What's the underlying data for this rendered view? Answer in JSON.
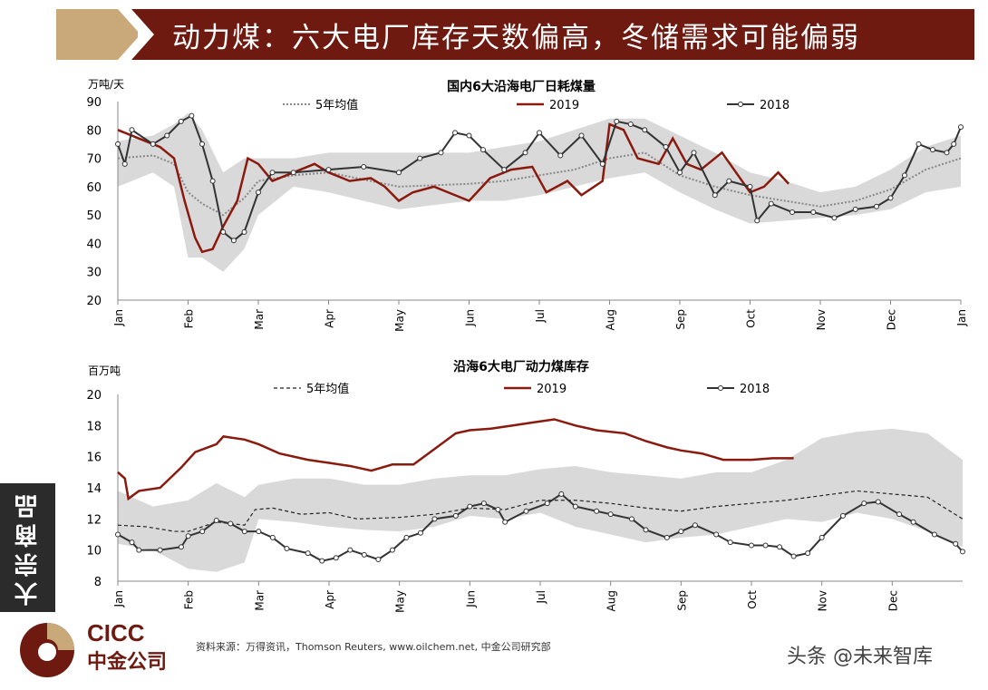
{
  "header": {
    "title": "动力煤：六大电厂库存天数偏高，冬储需求可能偏弱"
  },
  "sidebar": {
    "label": "大宗商品"
  },
  "footer": {
    "source": "资料来源：万得资讯，Thomson Reuters, www.oilchem.net, 中金公司研究部",
    "logo_en": "CICC",
    "logo_cn": "中金公司",
    "watermark": "头条 @未来智库"
  },
  "colors": {
    "banner": "#6e1a10",
    "accent_tan": "#c9a97a",
    "series_2019": "#8b1a0e",
    "series_2018": "#333333",
    "band": "#d9d9d9"
  },
  "chart_data": [
    {
      "type": "line",
      "title": "国内6大沿海电厂日耗煤量",
      "ylabel": "万吨/天",
      "ylim": [
        20,
        90
      ],
      "yticks": [
        20,
        30,
        40,
        50,
        60,
        70,
        80,
        90
      ],
      "categories": [
        "Jan",
        "Feb",
        "Mar",
        "Apr",
        "May",
        "Jun",
        "Jul",
        "Aug",
        "Sep",
        "Oct",
        "Nov",
        "Dec",
        "Jan"
      ],
      "legend": [
        "5年均值",
        "2019",
        "2018"
      ],
      "legend_position": "top",
      "band": {
        "x": [
          0,
          0.5,
          0.8,
          1,
          1.2,
          1.5,
          1.8,
          2,
          2.5,
          3,
          4,
          5,
          5.5,
          6,
          6.5,
          7,
          7.5,
          8,
          8.5,
          9,
          9.5,
          10,
          10.5,
          11,
          11.5,
          12
        ],
        "low": [
          60,
          65,
          60,
          35,
          35,
          30,
          38,
          50,
          60,
          58,
          52,
          55,
          55,
          57,
          60,
          63,
          65,
          58,
          52,
          47,
          48,
          49,
          50,
          52,
          58,
          60
        ],
        "high": [
          76,
          78,
          82,
          86,
          80,
          65,
          70,
          70,
          70,
          72,
          72,
          72,
          74,
          76,
          80,
          84,
          84,
          78,
          72,
          65,
          62,
          58,
          60,
          66,
          74,
          78
        ]
      },
      "series": [
        {
          "name": "5年均值",
          "style": "dotted",
          "x": [
            0,
            0.5,
            0.8,
            1,
            1.2,
            1.5,
            1.8,
            2,
            2.5,
            3,
            4,
            5,
            5.5,
            6,
            6.5,
            7,
            7.5,
            8,
            8.5,
            9,
            9.5,
            10,
            10.5,
            11,
            11.5,
            12
          ],
          "values": [
            70,
            71,
            68,
            58,
            54,
            50,
            56,
            62,
            64,
            65,
            60,
            61,
            62,
            64,
            66,
            70,
            72,
            64,
            60,
            57,
            55,
            53,
            55,
            59,
            66,
            70
          ]
        },
        {
          "name": "2019",
          "style": "solid",
          "x": [
            0,
            0.3,
            0.6,
            0.8,
            0.95,
            1.1,
            1.2,
            1.35,
            1.5,
            1.7,
            1.85,
            2,
            2.2,
            2.5,
            2.8,
            3,
            3.3,
            3.6,
            3.8,
            4,
            4.2,
            4.5,
            4.8,
            5,
            5.3,
            5.6,
            5.9,
            6.1,
            6.4,
            6.6,
            6.9,
            7,
            7.2,
            7.4,
            7.7,
            7.9,
            8.1,
            8.3,
            8.6,
            8.8,
            9,
            9.2,
            9.4,
            9.55
          ],
          "values": [
            80,
            77,
            74,
            70,
            55,
            42,
            37,
            38,
            46,
            55,
            70,
            68,
            62,
            65,
            68,
            65,
            62,
            63,
            60,
            55,
            58,
            60,
            57,
            55,
            63,
            66,
            67,
            58,
            62,
            57,
            62,
            82,
            80,
            70,
            68,
            77,
            68,
            66,
            72,
            65,
            58,
            60,
            65,
            61
          ]
        },
        {
          "name": "2018",
          "style": "marker",
          "x": [
            0,
            0.1,
            0.2,
            0.5,
            0.7,
            0.9,
            1.05,
            1.2,
            1.35,
            1.5,
            1.65,
            1.8,
            2,
            2.2,
            2.5,
            3,
            3.5,
            4,
            4.3,
            4.6,
            4.8,
            5,
            5.2,
            5.5,
            5.8,
            6,
            6.3,
            6.6,
            6.9,
            7.1,
            7.3,
            7.5,
            7.8,
            8,
            8.2,
            8.5,
            8.7,
            9,
            9.1,
            9.3,
            9.6,
            9.9,
            10.2,
            10.5,
            10.8,
            11,
            11.2,
            11.4,
            11.6,
            11.8,
            11.9,
            12
          ],
          "values": [
            75,
            68,
            80,
            75,
            78,
            83,
            85,
            75,
            62,
            44,
            41,
            44,
            58,
            65,
            65,
            66,
            67,
            65,
            70,
            72,
            79,
            78,
            73,
            66,
            72,
            79,
            71,
            78,
            68,
            83,
            82,
            80,
            74,
            65,
            72,
            57,
            62,
            60,
            48,
            54,
            51,
            51,
            49,
            52,
            53,
            56,
            64,
            75,
            73,
            72,
            75,
            81
          ]
        }
      ]
    },
    {
      "type": "line",
      "title": "沿海6大电厂动力煤库存",
      "ylabel": "百万吨",
      "ylim": [
        8,
        20
      ],
      "yticks": [
        8,
        10,
        12,
        14,
        16,
        18,
        20
      ],
      "categories": [
        "Jan",
        "Feb",
        "Mar",
        "Apr",
        "May",
        "Jun",
        "Jul",
        "Aug",
        "Sep",
        "Oct",
        "Nov",
        "Dec"
      ],
      "legend": [
        "5年均值",
        "2019",
        "2018"
      ],
      "legend_position": "top",
      "band": {
        "x": [
          0,
          0.5,
          1,
          1.4,
          1.8,
          2,
          2.5,
          3,
          3.5,
          4,
          4.5,
          5,
          5.5,
          6,
          6.5,
          7,
          7.5,
          8,
          8.5,
          9,
          9.5,
          10,
          10.5,
          11,
          11.5,
          12
        ],
        "low": [
          10.4,
          10,
          8.8,
          8.6,
          9.2,
          12,
          11.8,
          11.5,
          11.3,
          11.2,
          11.5,
          12.2,
          12,
          12.4,
          11.5,
          11,
          10.5,
          10.8,
          11,
          11.5,
          12,
          11.8,
          12.4,
          12,
          11.2,
          10.2
        ],
        "high": [
          13.8,
          12.8,
          13.2,
          14.3,
          13.4,
          14.2,
          14.6,
          14.6,
          14.2,
          14.2,
          14.6,
          14.8,
          14.8,
          15.2,
          15.4,
          15,
          14.8,
          14.6,
          15,
          15,
          15.8,
          17.2,
          17.6,
          17.8,
          17.5,
          15.8
        ]
      },
      "series": [
        {
          "name": "5年均值",
          "style": "dashed",
          "x": [
            0,
            0.4,
            0.8,
            1,
            1.4,
            1.8,
            1.95,
            2.2,
            2.6,
            3,
            3.4,
            4,
            4.5,
            5,
            5.5,
            6,
            6.5,
            7,
            7.5,
            8,
            8.5,
            9,
            9.5,
            10,
            10.5,
            11,
            11.5,
            12
          ],
          "values": [
            11.6,
            11.5,
            11.2,
            11.2,
            11.8,
            11.6,
            12.6,
            12.7,
            12.3,
            12.4,
            12,
            12.1,
            12.3,
            12.7,
            12.6,
            13.2,
            13.2,
            13,
            12.7,
            12.5,
            12.8,
            13,
            13.2,
            13.5,
            13.8,
            13.6,
            13.4,
            12
          ]
        },
        {
          "name": "2019",
          "style": "solid",
          "x": [
            0,
            0.1,
            0.15,
            0.3,
            0.6,
            0.9,
            1.1,
            1.4,
            1.5,
            1.8,
            2,
            2.3,
            2.7,
            3,
            3.3,
            3.6,
            3.9,
            4.2,
            4.5,
            4.8,
            5,
            5.3,
            5.6,
            5.9,
            6.2,
            6.5,
            6.8,
            7.2,
            7.5,
            7.8,
            8,
            8.3,
            8.6,
            9,
            9.3,
            9.6
          ],
          "values": [
            15,
            14.6,
            13.3,
            13.8,
            14,
            15.3,
            16.3,
            16.8,
            17.3,
            17.1,
            16.8,
            16.2,
            15.8,
            15.6,
            15.4,
            15.1,
            15.5,
            15.5,
            16.5,
            17.5,
            17.7,
            17.8,
            18,
            18.2,
            18.4,
            18,
            17.7,
            17.5,
            17,
            16.6,
            16.4,
            16.2,
            15.8,
            15.8,
            15.9,
            15.9
          ]
        },
        {
          "name": "2018",
          "style": "marker",
          "x": [
            0,
            0.2,
            0.3,
            0.6,
            0.9,
            1,
            1.2,
            1.4,
            1.6,
            1.8,
            2,
            2.2,
            2.4,
            2.7,
            2.9,
            3.1,
            3.3,
            3.5,
            3.7,
            3.9,
            4.1,
            4.3,
            4.5,
            4.8,
            5,
            5.2,
            5.4,
            5.5,
            5.8,
            6.1,
            6.3,
            6.5,
            6.8,
            7,
            7.3,
            7.5,
            7.8,
            8,
            8.2,
            8.5,
            8.7,
            9,
            9.2,
            9.4,
            9.6,
            9.8,
            10,
            10.3,
            10.6,
            10.8,
            11.1,
            11.3,
            11.6,
            11.9,
            12
          ],
          "values": [
            11,
            10.5,
            10,
            10,
            10.2,
            10.9,
            11.2,
            11.9,
            11.7,
            11.2,
            11.2,
            10.8,
            10.1,
            9.8,
            9.3,
            9.5,
            10,
            9.7,
            9.4,
            10,
            10.8,
            11.1,
            12,
            12.2,
            12.8,
            13,
            12.6,
            11.8,
            12.5,
            13,
            13.6,
            12.8,
            12.5,
            12.3,
            12,
            11.3,
            10.8,
            11.2,
            11.6,
            11,
            10.5,
            10.3,
            10.3,
            10.2,
            9.6,
            9.8,
            10.8,
            12.2,
            13,
            13.1,
            12.3,
            11.8,
            11,
            10.4,
            9.9
          ]
        }
      ]
    }
  ]
}
